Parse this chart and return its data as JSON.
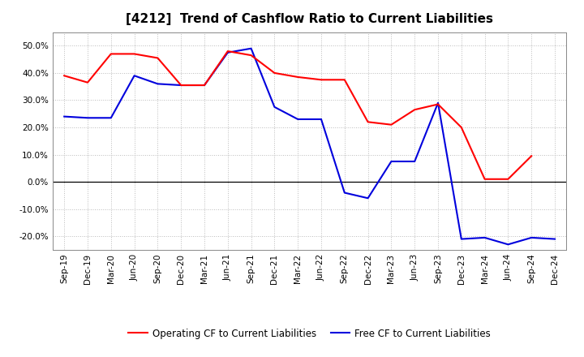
{
  "title": "[4212]  Trend of Cashflow Ratio to Current Liabilities",
  "x_labels": [
    "Sep-19",
    "Dec-19",
    "Mar-20",
    "Jun-20",
    "Sep-20",
    "Dec-20",
    "Mar-21",
    "Jun-21",
    "Sep-21",
    "Dec-21",
    "Mar-22",
    "Jun-22",
    "Sep-22",
    "Dec-22",
    "Mar-23",
    "Jun-23",
    "Sep-23",
    "Dec-23",
    "Mar-24",
    "Jun-24",
    "Sep-24",
    "Dec-24"
  ],
  "operating_cf": [
    0.39,
    0.365,
    0.47,
    0.47,
    0.455,
    0.355,
    0.355,
    0.48,
    0.465,
    0.4,
    0.385,
    0.375,
    0.375,
    0.22,
    0.21,
    0.265,
    0.285,
    0.2,
    0.01,
    0.01,
    0.095,
    null
  ],
  "free_cf": [
    0.24,
    0.235,
    0.235,
    0.39,
    0.36,
    0.355,
    0.355,
    0.475,
    0.49,
    0.275,
    0.23,
    0.23,
    -0.04,
    -0.06,
    0.075,
    0.075,
    0.29,
    -0.21,
    -0.205,
    -0.23,
    -0.205,
    -0.21
  ],
  "ylim": [
    -0.25,
    0.55
  ],
  "yticks": [
    -0.2,
    -0.1,
    0.0,
    0.1,
    0.2,
    0.3,
    0.4,
    0.5
  ],
  "operating_color": "#FF0000",
  "free_color": "#0000DD",
  "legend_operating": "Operating CF to Current Liabilities",
  "legend_free": "Free CF to Current Liabilities",
  "bg_color": "#FFFFFF",
  "grid_color": "#BBBBBB",
  "title_fontsize": 11,
  "tick_fontsize": 7.5,
  "legend_fontsize": 8.5
}
